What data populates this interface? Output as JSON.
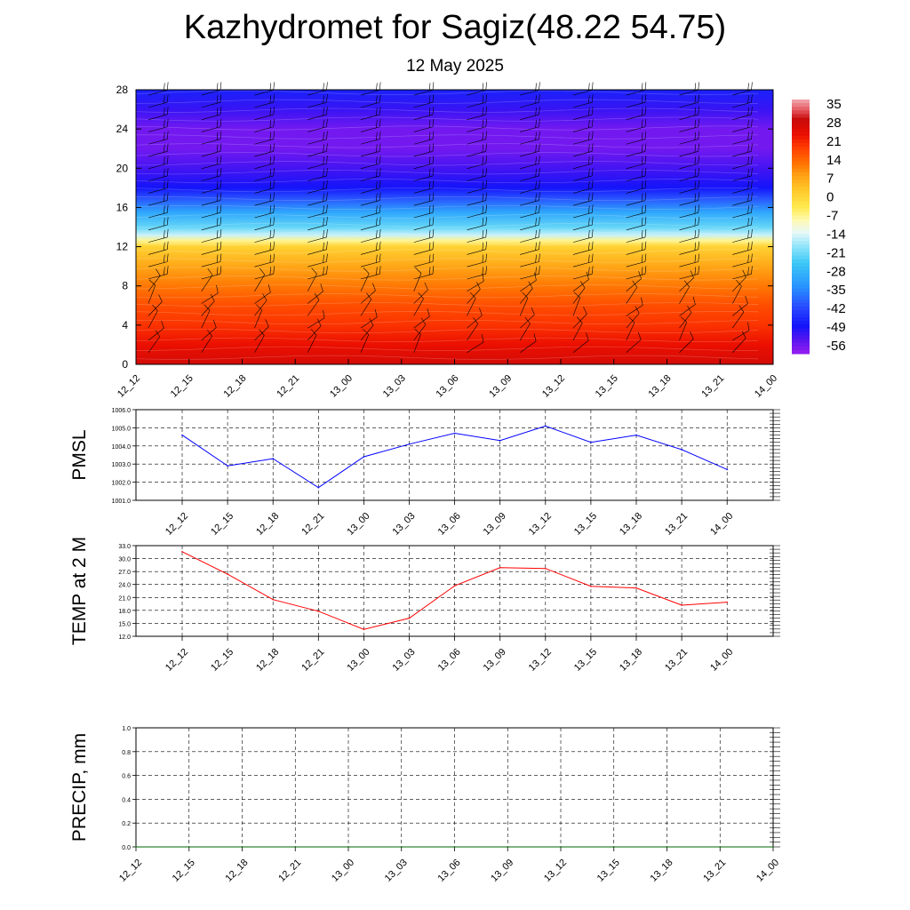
{
  "title": "Kazhydromet for Sagiz(48.22 54.75)",
  "subtitle": "12 May 2025",
  "colors": {
    "pmsl_line": "#0000ff",
    "temp_line": "#ff0000",
    "precip_line": "#006400",
    "grid": "#000000"
  },
  "chart_data": [
    {
      "id": "section",
      "type": "heatmap",
      "title": "",
      "xlabel": "",
      "ylabel": "",
      "x_ticks": [
        "12_12",
        "12_15",
        "12_18",
        "12_21",
        "13_00",
        "13_03",
        "13_06",
        "13_09",
        "13_12",
        "13_15",
        "13_18",
        "13_21",
        "14_00"
      ],
      "y_ticks": [
        0,
        4,
        8,
        12,
        16,
        20,
        24,
        28
      ],
      "ylim": [
        0,
        28
      ],
      "colorbar_labels": [
        "35",
        "28",
        "21",
        "14",
        "7",
        "0",
        "-7",
        "-14",
        "-21",
        "-28",
        "-35",
        "-42",
        "-49",
        "-56"
      ],
      "colorbar_range": [
        -63,
        38
      ],
      "temperature_profile": [
        {
          "level": 0,
          "value": 28
        },
        {
          "level": 2,
          "value": 24
        },
        {
          "level": 4,
          "value": 20
        },
        {
          "level": 6,
          "value": 17
        },
        {
          "level": 8,
          "value": 12
        },
        {
          "level": 10,
          "value": 7
        },
        {
          "level": 12,
          "value": 0
        },
        {
          "level": 12.6,
          "value": -8
        },
        {
          "level": 13.2,
          "value": -17
        },
        {
          "level": 14,
          "value": -24
        },
        {
          "level": 15.5,
          "value": -33
        },
        {
          "level": 17,
          "value": -44
        },
        {
          "level": 18,
          "value": -52
        },
        {
          "level": 20,
          "value": -56
        },
        {
          "level": 22,
          "value": -60
        },
        {
          "level": 24,
          "value": -60
        },
        {
          "level": 26,
          "value": -55
        },
        {
          "level": 28,
          "value": -50
        }
      ],
      "wind_barbs": "present"
    },
    {
      "id": "pmsl",
      "type": "line",
      "ylabel": "PMSL",
      "xlabel": "",
      "ylim": [
        1001.0,
        1006.0
      ],
      "y_ticks": [
        "1001.0",
        "1002.0",
        "1003.0",
        "1004.0",
        "1005.0",
        "1006.0"
      ],
      "x": [
        "12_12",
        "12_15",
        "12_18",
        "12_21",
        "13_00",
        "13_03",
        "13_06",
        "13_09",
        "13_12",
        "13_15",
        "13_18",
        "13_21",
        "14_00"
      ],
      "series": [
        {
          "values": [
            1004.6,
            1002.9,
            1003.3,
            1001.7,
            1003.4,
            1004.1,
            1004.7,
            1004.3,
            1005.1,
            1004.2,
            1004.6,
            1003.8,
            1002.7
          ]
        }
      ]
    },
    {
      "id": "temp",
      "type": "line",
      "ylabel": "TEMP at 2 M",
      "xlabel": "",
      "ylim": [
        12.0,
        33.0
      ],
      "y_ticks": [
        "12.0",
        "15.0",
        "18.0",
        "21.0",
        "24.0",
        "27.0",
        "30.0",
        "33.0"
      ],
      "x": [
        "12_12",
        "12_15",
        "12_18",
        "12_21",
        "13_00",
        "13_03",
        "13_06",
        "13_09",
        "13_12",
        "13_15",
        "13_18",
        "13_21",
        "14_00"
      ],
      "series": [
        {
          "values": [
            31.6,
            26.4,
            20.5,
            17.8,
            13.6,
            16.2,
            23.7,
            27.9,
            27.7,
            23.6,
            23.2,
            19.2,
            19.9
          ]
        }
      ]
    },
    {
      "id": "precip",
      "type": "line",
      "ylabel": "PRECIP, mm",
      "xlabel": "",
      "ylim": [
        0.0,
        1.0
      ],
      "y_ticks": [
        "0.0",
        "0.2",
        "0.4",
        "0.6",
        "0.8",
        "1.0"
      ],
      "x": [
        "12_12",
        "12_15",
        "12_18",
        "12_21",
        "13_00",
        "13_03",
        "13_06",
        "13_09",
        "13_12",
        "13_15",
        "13_18",
        "13_21",
        "14_00"
      ],
      "series": [
        {
          "values": [
            0,
            0,
            0,
            0,
            0,
            0,
            0,
            0,
            0,
            0,
            0,
            0,
            0
          ]
        }
      ]
    }
  ]
}
